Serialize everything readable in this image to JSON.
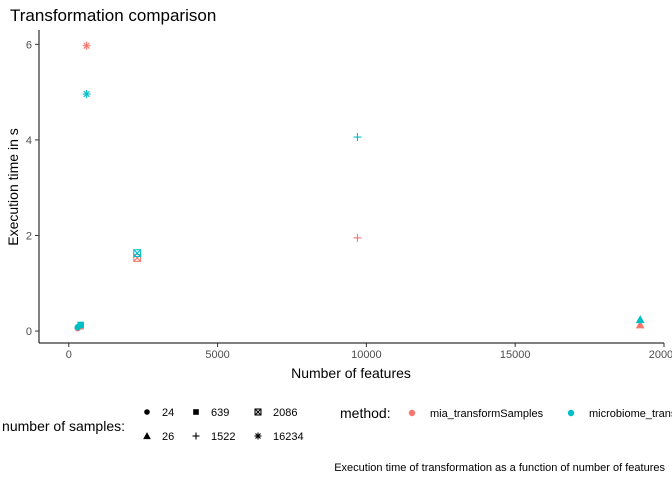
{
  "chart_data": {
    "type": "scatter",
    "title": "Transformation comparison",
    "xlabel": "Number of features",
    "ylabel": "Execution time in s",
    "caption": "Execution time of transformation as a function of number of features",
    "xlim": [
      -1000,
      20000
    ],
    "ylim": [
      -0.25,
      6.3
    ],
    "x_ticks": [
      0,
      5000,
      10000,
      15000,
      20000
    ],
    "x_tick_labels": [
      "0",
      "5000",
      "10000",
      "15000",
      "20000"
    ],
    "y_ticks": [
      0,
      2,
      4,
      6
    ],
    "y_tick_labels": [
      "0",
      "2",
      "4",
      "6"
    ],
    "grid": false,
    "legend_position": "bottom",
    "shape_legend": {
      "title": "number of samples:",
      "items": [
        {
          "label": "24",
          "shape": "circle"
        },
        {
          "label": "26",
          "shape": "triangle"
        },
        {
          "label": "639",
          "shape": "square"
        },
        {
          "label": "1522",
          "shape": "plus"
        },
        {
          "label": "2086",
          "shape": "boxed-x"
        },
        {
          "label": "16234",
          "shape": "asterisk"
        }
      ]
    },
    "color_legend": {
      "title": "method:",
      "items": [
        {
          "label": "mia_transformSamples",
          "color": "#F8766D"
        },
        {
          "label": "microbiome_transform",
          "color": "#00BFC4"
        }
      ]
    },
    "series": [
      {
        "name": "mia_transformSamples",
        "color": "#F8766D",
        "points": [
          {
            "x": 300,
            "y": 0.06,
            "shape": "circle"
          },
          {
            "x": 19200,
            "y": 0.13,
            "shape": "triangle"
          },
          {
            "x": 400,
            "y": 0.1,
            "shape": "square"
          },
          {
            "x": 9700,
            "y": 1.95,
            "shape": "plus"
          },
          {
            "x": 2300,
            "y": 1.53,
            "shape": "boxed-x"
          },
          {
            "x": 600,
            "y": 5.97,
            "shape": "asterisk"
          }
        ]
      },
      {
        "name": "microbiome_transform",
        "color": "#00BFC4",
        "points": [
          {
            "x": 300,
            "y": 0.08,
            "shape": "circle"
          },
          {
            "x": 19200,
            "y": 0.24,
            "shape": "triangle"
          },
          {
            "x": 400,
            "y": 0.13,
            "shape": "square"
          },
          {
            "x": 9700,
            "y": 4.06,
            "shape": "plus"
          },
          {
            "x": 2300,
            "y": 1.63,
            "shape": "boxed-x"
          },
          {
            "x": 600,
            "y": 4.96,
            "shape": "asterisk"
          }
        ]
      }
    ]
  }
}
